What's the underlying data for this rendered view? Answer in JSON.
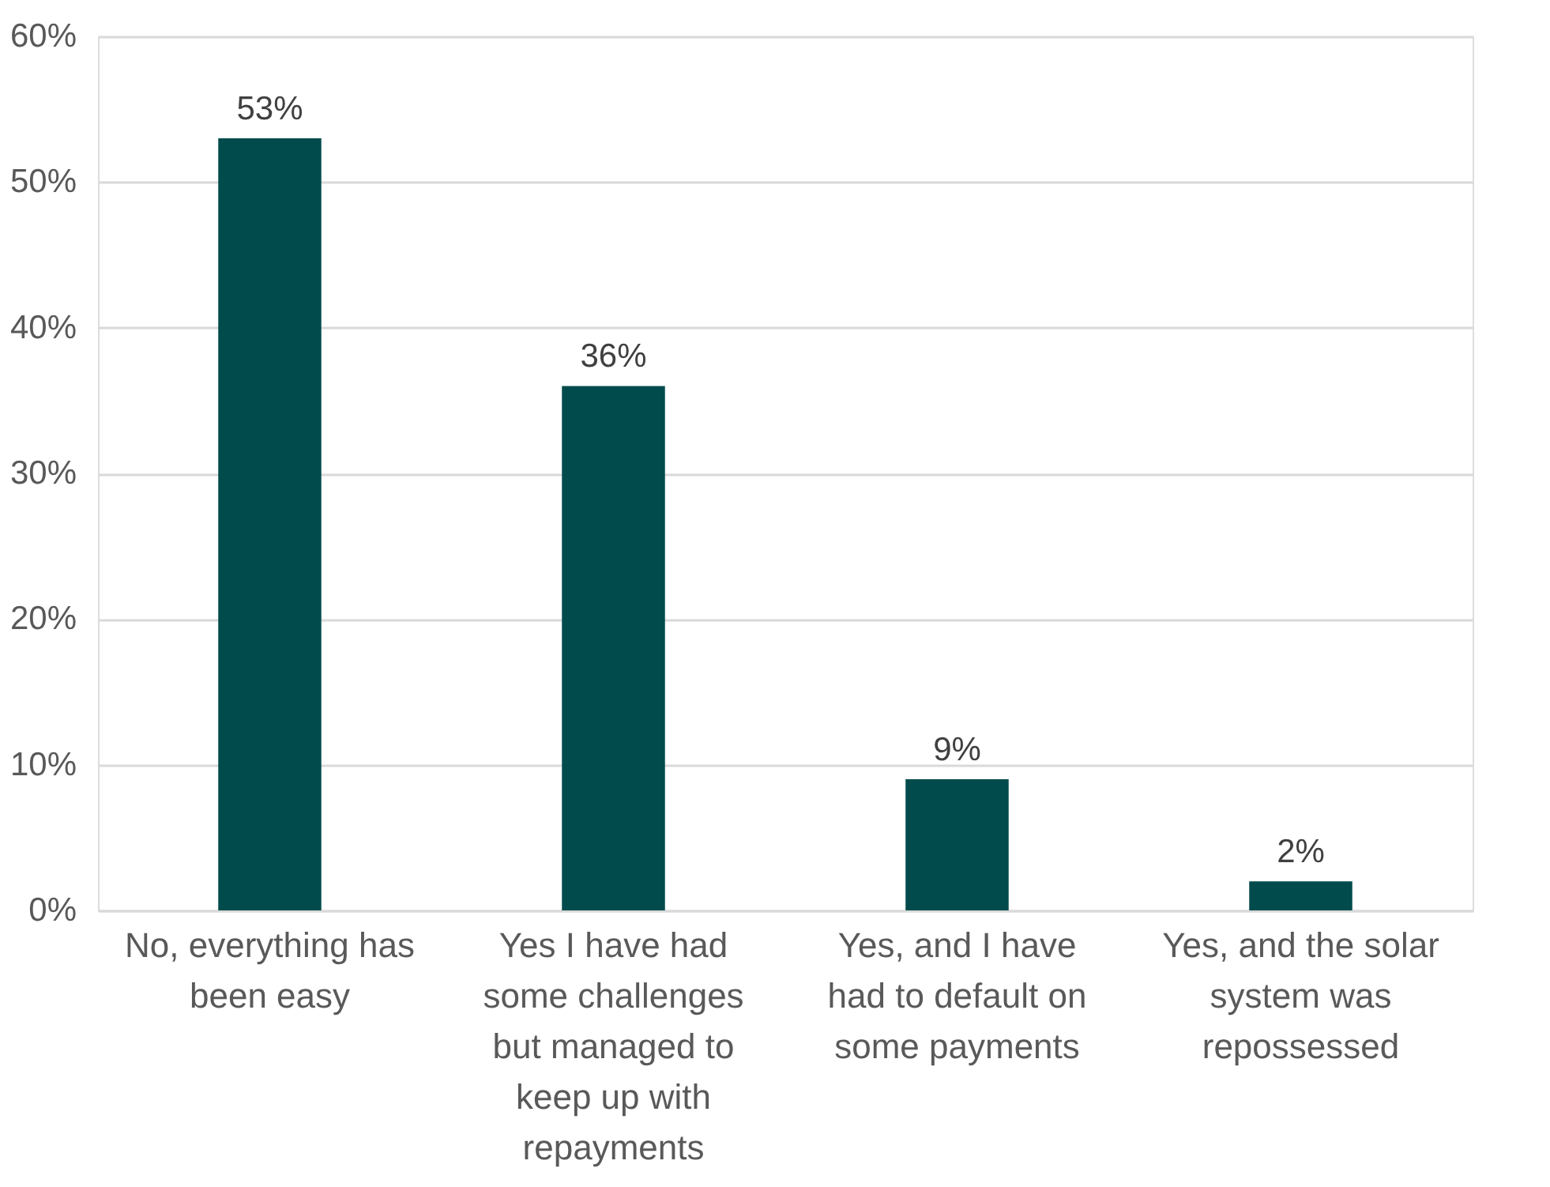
{
  "chart_data": {
    "type": "bar",
    "categories": [
      "No, everything has been easy",
      "Yes I have had some challenges but managed to keep up with repayments",
      "Yes, and I have had to default on some payments",
      "Yes, and the solar system was repossessed"
    ],
    "values": [
      53,
      36,
      9,
      2
    ],
    "value_labels": [
      "53%",
      "36%",
      "9%",
      "2%"
    ],
    "color": "#024b4c",
    "ylim": [
      0,
      60
    ],
    "yticks": [
      {
        "value": 0,
        "label": "0%"
      },
      {
        "value": 10,
        "label": "10%"
      },
      {
        "value": 20,
        "label": "20%"
      },
      {
        "value": 30,
        "label": "30%"
      },
      {
        "value": 40,
        "label": "40%"
      },
      {
        "value": 50,
        "label": "50%"
      },
      {
        "value": 60,
        "label": "60%"
      }
    ],
    "grid": "y"
  }
}
